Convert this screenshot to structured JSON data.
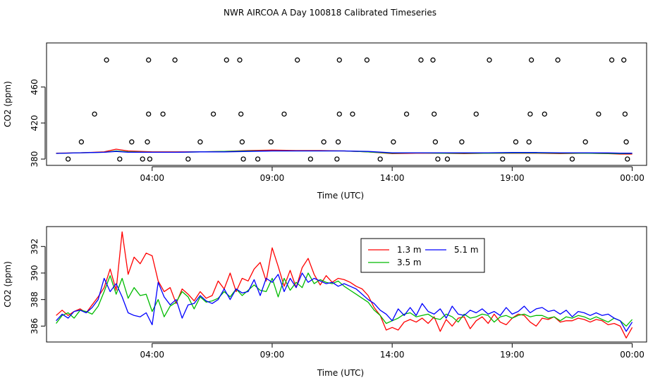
{
  "chart_data": [
    {
      "type": "scatter",
      "title": "NWR AIRCOA A  Day 100818  Calibrated Timeseries",
      "xlabel": "Time (UTC)",
      "ylabel": "CO2 (ppm)",
      "x_ticks": [
        {
          "value": 4,
          "label": "04:00"
        },
        {
          "value": 9,
          "label": "09:00"
        },
        {
          "value": 14,
          "label": "14:00"
        },
        {
          "value": 19,
          "label": "19:00"
        },
        {
          "value": 24,
          "label": "00:00"
        }
      ],
      "y_ticks": [
        {
          "value": 380,
          "label": "380"
        },
        {
          "value": 420,
          "label": "420"
        },
        {
          "value": 460,
          "label": "460"
        }
      ],
      "xlim": [
        -0.4,
        24.6
      ],
      "ylim": [
        373,
        509
      ],
      "calibration_points": {
        "x": [
          0.5,
          1.05,
          1.6,
          2.1,
          2.65,
          3.15,
          3.6,
          3.8,
          3.85,
          3.85,
          3.9,
          4.45,
          4.95,
          5.5,
          6.0,
          6.55,
          7.1,
          7.65,
          7.7,
          7.75,
          7.8,
          8.4,
          8.95,
          9.5,
          10.05,
          10.6,
          11.15,
          11.7,
          11.75,
          11.8,
          11.8,
          12.35,
          12.95,
          13.5,
          14.05,
          14.6,
          15.2,
          15.7,
          15.75,
          15.8,
          15.9,
          16.3,
          16.9,
          17.5,
          18.05,
          18.6,
          19.15,
          19.65,
          19.7,
          19.75,
          19.8,
          20.35,
          20.9,
          21.5,
          22.05,
          22.6,
          23.15,
          23.65,
          23.7,
          23.75,
          23.8
        ],
        "y": [
          380,
          399,
          430,
          490,
          380,
          399,
          380,
          399,
          430,
          490,
          380,
          430,
          490,
          380,
          399,
          430,
          490,
          490,
          430,
          399,
          380,
          380,
          399,
          430,
          490,
          380,
          399,
          380,
          399,
          430,
          490,
          430,
          490,
          380,
          399,
          430,
          490,
          490,
          430,
          399,
          380,
          380,
          399,
          430,
          490,
          380,
          399,
          380,
          399,
          430,
          490,
          430,
          490,
          380,
          399,
          430,
          490,
          490,
          430,
          399,
          380
        ]
      },
      "series": [
        {
          "name": "1.3 m",
          "color": "#ff0000",
          "x": [
            0,
            1,
            2,
            2.5,
            3,
            4,
            5,
            6,
            7,
            8,
            9,
            10,
            11,
            12,
            13,
            14,
            15,
            16,
            17,
            18,
            19,
            20,
            21,
            22,
            23,
            23.5,
            24
          ],
          "y": [
            386.5,
            387,
            388,
            391,
            389,
            388,
            388,
            388,
            388.5,
            389.5,
            390,
            389.5,
            389.5,
            389,
            388,
            386,
            386.5,
            386.5,
            386,
            386.5,
            386.5,
            386.5,
            386,
            386.5,
            386,
            385.5,
            385.5
          ]
        },
        {
          "name": "3.5 m",
          "color": "#00bb00",
          "x": [
            0,
            1,
            2,
            2.5,
            3,
            4,
            5,
            6,
            7,
            8,
            9,
            10,
            11,
            12,
            13,
            14,
            15,
            16,
            17,
            18,
            19,
            20,
            21,
            22,
            23,
            23.5,
            24
          ],
          "y": [
            386.3,
            387,
            387.5,
            389,
            388,
            387.5,
            387.5,
            388,
            388.5,
            389,
            389,
            389,
            389,
            389,
            388,
            386.5,
            387,
            386.5,
            386.5,
            386.5,
            386.8,
            386.8,
            386.5,
            386.5,
            386.2,
            386,
            386.3
          ]
        },
        {
          "name": "5.1 m",
          "color": "#0000ff",
          "x": [
            0,
            1,
            2,
            2.5,
            3,
            4,
            5,
            6,
            7,
            8,
            9,
            10,
            11,
            12,
            13,
            14,
            15,
            16,
            17,
            18,
            19,
            20,
            21,
            22,
            23,
            23.5,
            24
          ],
          "y": [
            386.3,
            387,
            387.5,
            388.5,
            387.5,
            387.5,
            387.5,
            388,
            388,
            388.5,
            389,
            389,
            389,
            389,
            388.5,
            387,
            387,
            387,
            387,
            387,
            387.3,
            387.3,
            387,
            387,
            386.8,
            386.5,
            386.5
          ]
        }
      ]
    },
    {
      "type": "line",
      "xlabel": "Time (UTC)",
      "ylabel": "CO2 (ppm)",
      "x_ticks": [
        {
          "value": 4,
          "label": "04:00"
        },
        {
          "value": 9,
          "label": "09:00"
        },
        {
          "value": 14,
          "label": "14:00"
        },
        {
          "value": 19,
          "label": "19:00"
        },
        {
          "value": 24,
          "label": "00:00"
        }
      ],
      "y_ticks": [
        {
          "value": 386,
          "label": "386"
        },
        {
          "value": 388,
          "label": "388"
        },
        {
          "value": 390,
          "label": "390"
        },
        {
          "value": 392,
          "label": "392"
        }
      ],
      "xlim": [
        -0.4,
        24.6
      ],
      "ylim": [
        384.8,
        393.5
      ],
      "legend": [
        {
          "name": "1.3 m",
          "color": "#ff0000"
        },
        {
          "name": "3.5 m",
          "color": "#00bb00"
        },
        {
          "name": "5.1 m",
          "color": "#0000ff"
        }
      ],
      "series": [
        {
          "name": "1.3 m",
          "color": "#ff0000",
          "x": [
            0,
            0.25,
            0.5,
            0.75,
            1,
            1.25,
            1.5,
            1.75,
            2,
            2.25,
            2.5,
            2.75,
            3,
            3.25,
            3.5,
            3.75,
            4,
            4.25,
            4.5,
            4.75,
            5,
            5.25,
            5.5,
            5.75,
            6,
            6.25,
            6.5,
            6.75,
            7,
            7.25,
            7.5,
            7.75,
            8,
            8.25,
            8.5,
            8.75,
            9,
            9.25,
            9.5,
            9.75,
            10,
            10.25,
            10.5,
            10.75,
            11,
            11.25,
            11.5,
            11.75,
            12,
            12.25,
            12.5,
            12.75,
            13,
            13.25,
            13.5,
            13.75,
            14,
            14.25,
            14.5,
            14.75,
            15,
            15.25,
            15.5,
            15.75,
            16,
            16.25,
            16.5,
            16.75,
            17,
            17.25,
            17.5,
            17.75,
            18,
            18.25,
            18.5,
            18.75,
            19,
            19.25,
            19.5,
            19.75,
            20,
            20.25,
            20.5,
            20.75,
            21,
            21.25,
            21.5,
            21.75,
            22,
            22.25,
            22.5,
            22.75,
            23,
            23.25,
            23.5,
            23.75,
            24
          ],
          "y": [
            386.8,
            387.2,
            386.8,
            387.1,
            387.3,
            387.0,
            387.6,
            388.2,
            388.9,
            390.3,
            388.7,
            393.1,
            389.9,
            391.2,
            390.7,
            391.5,
            391.3,
            389.4,
            388.6,
            388.9,
            387.7,
            388.8,
            388.4,
            387.9,
            388.6,
            388.1,
            388.3,
            389.4,
            388.8,
            390.0,
            388.6,
            389.6,
            389.4,
            390.3,
            390.8,
            389.4,
            391.9,
            390.5,
            389.0,
            390.2,
            388.9,
            390.4,
            391.1,
            389.9,
            389.1,
            389.8,
            389.3,
            389.6,
            389.5,
            389.3,
            389.0,
            388.8,
            388.3,
            387.4,
            386.8,
            385.7,
            385.9,
            385.7,
            386.3,
            386.5,
            386.3,
            386.6,
            386.2,
            386.7,
            385.6,
            386.5,
            386.0,
            386.6,
            386.7,
            385.8,
            386.4,
            386.7,
            386.2,
            386.9,
            386.3,
            386.1,
            386.6,
            386.9,
            386.8,
            386.3,
            386.0,
            386.6,
            386.5,
            386.7,
            386.3,
            386.4,
            386.4,
            386.6,
            386.5,
            386.3,
            386.5,
            386.4,
            386.1,
            386.2,
            386.0,
            385.1,
            385.9
          ]
        },
        {
          "name": "3.5 m",
          "color": "#00bb00",
          "x": [
            0,
            0.25,
            0.5,
            0.75,
            1,
            1.25,
            1.5,
            1.75,
            2,
            2.25,
            2.5,
            2.75,
            3,
            3.25,
            3.5,
            3.75,
            4,
            4.25,
            4.5,
            4.75,
            5,
            5.25,
            5.5,
            5.75,
            6,
            6.25,
            6.5,
            6.75,
            7,
            7.25,
            7.5,
            7.75,
            8,
            8.25,
            8.5,
            8.75,
            9,
            9.25,
            9.5,
            9.75,
            10,
            10.25,
            10.5,
            10.75,
            11,
            11.25,
            11.5,
            11.75,
            12,
            12.25,
            12.5,
            12.75,
            13,
            13.25,
            13.5,
            13.75,
            14,
            14.25,
            14.5,
            14.75,
            15,
            15.25,
            15.5,
            15.75,
            16,
            16.25,
            16.5,
            16.75,
            17,
            17.25,
            17.5,
            17.75,
            18,
            18.25,
            18.5,
            18.75,
            19,
            19.25,
            19.5,
            19.75,
            20,
            20.25,
            20.5,
            20.75,
            21,
            21.25,
            21.5,
            21.75,
            22,
            22.25,
            22.5,
            22.75,
            23,
            23.25,
            23.5,
            23.75,
            24
          ],
          "y": [
            386.2,
            386.8,
            387.0,
            386.6,
            387.2,
            387.1,
            386.9,
            387.5,
            388.6,
            389.8,
            388.4,
            389.6,
            388.1,
            388.9,
            388.3,
            388.4,
            387.1,
            388.0,
            386.7,
            387.5,
            387.8,
            388.6,
            388.2,
            387.3,
            388.2,
            387.8,
            387.9,
            388.1,
            388.6,
            388.2,
            388.8,
            388.3,
            388.7,
            389.1,
            388.7,
            388.6,
            389.6,
            388.2,
            389.6,
            388.7,
            389.3,
            388.9,
            390.0,
            389.2,
            389.5,
            389.3,
            389.2,
            389.4,
            389.0,
            388.7,
            388.4,
            388.1,
            387.8,
            387.2,
            386.8,
            386.2,
            386.4,
            386.6,
            386.9,
            387.0,
            386.7,
            386.8,
            386.9,
            386.6,
            386.5,
            386.9,
            386.7,
            386.3,
            386.9,
            386.6,
            386.7,
            386.9,
            386.8,
            386.3,
            386.7,
            386.8,
            386.6,
            386.8,
            386.9,
            386.7,
            386.8,
            386.8,
            386.6,
            386.7,
            386.4,
            386.7,
            386.6,
            386.8,
            386.7,
            386.5,
            386.7,
            386.5,
            386.3,
            386.6,
            386.4,
            386.0,
            386.5
          ]
        },
        {
          "name": "5.1 m",
          "color": "#0000ff",
          "x": [
            0,
            0.25,
            0.5,
            0.75,
            1,
            1.25,
            1.5,
            1.75,
            2,
            2.25,
            2.5,
            2.75,
            3,
            3.25,
            3.5,
            3.75,
            4,
            4.25,
            4.5,
            4.75,
            5,
            5.25,
            5.5,
            5.75,
            6,
            6.25,
            6.5,
            6.75,
            7,
            7.25,
            7.5,
            7.75,
            8,
            8.25,
            8.5,
            8.75,
            9,
            9.25,
            9.5,
            9.75,
            10,
            10.25,
            10.5,
            10.75,
            11,
            11.25,
            11.5,
            11.75,
            12,
            12.25,
            12.5,
            12.75,
            13,
            13.25,
            13.5,
            13.75,
            14,
            14.25,
            14.5,
            14.75,
            15,
            15.25,
            15.5,
            15.75,
            16,
            16.25,
            16.5,
            16.75,
            17,
            17.25,
            17.5,
            17.75,
            18,
            18.25,
            18.5,
            18.75,
            19,
            19.25,
            19.5,
            19.75,
            20,
            20.25,
            20.5,
            20.75,
            21,
            21.25,
            21.5,
            21.75,
            22,
            22.25,
            22.5,
            22.75,
            23,
            23.25,
            23.5,
            23.75,
            24
          ],
          "y": [
            386.4,
            386.9,
            386.6,
            387.1,
            387.2,
            387.0,
            387.4,
            388.0,
            389.6,
            388.6,
            389.2,
            388.2,
            387.0,
            386.8,
            386.7,
            387.0,
            386.1,
            389.3,
            388.2,
            387.6,
            388.0,
            386.6,
            387.6,
            387.7,
            388.3,
            387.9,
            387.7,
            388.0,
            388.8,
            388.0,
            388.8,
            388.5,
            388.6,
            389.5,
            388.3,
            389.6,
            389.3,
            389.9,
            388.6,
            389.6,
            388.9,
            390.0,
            389.3,
            389.6,
            389.4,
            389.2,
            389.3,
            389.0,
            389.2,
            389.0,
            388.8,
            388.4,
            388.0,
            387.7,
            387.2,
            386.9,
            386.4,
            387.3,
            386.8,
            387.4,
            386.8,
            387.7,
            387.1,
            386.9,
            387.3,
            386.6,
            387.5,
            386.9,
            386.8,
            387.2,
            387.0,
            387.3,
            386.9,
            387.1,
            386.8,
            387.4,
            386.9,
            387.1,
            387.5,
            387.0,
            387.3,
            387.4,
            387.1,
            387.2,
            386.9,
            387.2,
            386.7,
            387.1,
            387.0,
            386.8,
            387.0,
            386.8,
            386.9,
            386.6,
            386.4,
            385.6,
            386.3
          ]
        }
      ]
    }
  ]
}
